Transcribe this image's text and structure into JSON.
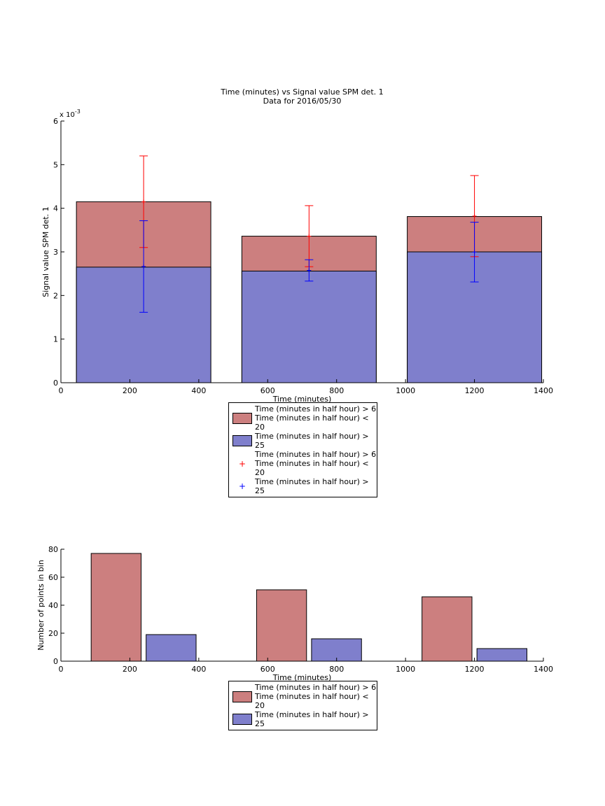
{
  "chart_data": [
    {
      "type": "bar",
      "title": "Time (minutes) vs Signal value SPM det. 1",
      "subtitle": "Data for 2016/05/30",
      "xlabel": "Time (minutes)",
      "ylabel": "Signal value SPM det. 1",
      "y_exponent_base": "x 10",
      "y_exponent": "-3",
      "x": [
        240,
        720,
        1200
      ],
      "bar_width": 390,
      "grouped": false,
      "series": [
        {
          "name": "Time (minutes in half hour) > 6\nTime (minutes in half hour) < 20",
          "color": "#cc7f7f",
          "values": [
            4.15,
            3.36,
            3.81
          ]
        },
        {
          "name": "Time (minutes in half hour) > 25",
          "color": "#7f7fcc",
          "values": [
            2.65,
            2.56,
            3.0
          ]
        }
      ],
      "error_series": [
        {
          "name": "Time (minutes in half hour) > 6\nTime (minutes in half hour) < 20",
          "color": "#ff0000",
          "values": [
            4.15,
            3.36,
            3.82
          ],
          "errors": [
            1.05,
            0.7,
            0.93
          ]
        },
        {
          "name": "Time (minutes in half hour) > 25",
          "color": "#0000ff",
          "values": [
            2.665,
            2.575,
            2.995
          ],
          "errors": [
            1.05,
            0.245,
            0.685
          ]
        }
      ],
      "xlim": [
        0,
        1400
      ],
      "xticks": [
        0,
        200,
        400,
        600,
        800,
        1000,
        1200,
        1400
      ],
      "ylim": [
        0,
        6
      ],
      "yticks": [
        0,
        1,
        2,
        3,
        4,
        5,
        6
      ]
    },
    {
      "type": "bar",
      "xlabel": "Time (minutes)",
      "ylabel": "Number of points in bin",
      "x": [
        240,
        720,
        1200
      ],
      "bar_width": 145,
      "grouped": true,
      "series": [
        {
          "name": "Time (minutes in half hour) > 6\nTime (minutes in half hour) < 20",
          "color": "#cc7f7f",
          "values": [
            77,
            51,
            46
          ]
        },
        {
          "name": "Time (minutes in half hour) > 25",
          "color": "#7f7fcc",
          "values": [
            19,
            16,
            9
          ]
        }
      ],
      "xlim": [
        0,
        1400
      ],
      "xticks": [
        0,
        200,
        400,
        600,
        800,
        1000,
        1200,
        1400
      ],
      "ylim": [
        0,
        80
      ],
      "yticks": [
        0,
        20,
        40,
        60,
        80
      ]
    }
  ]
}
